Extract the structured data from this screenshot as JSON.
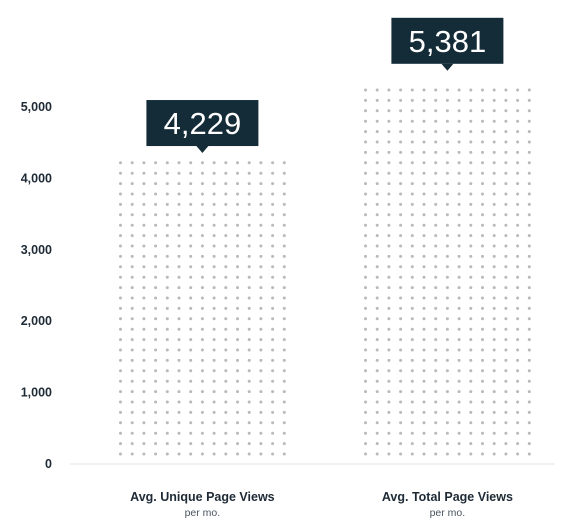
{
  "chart_data": {
    "type": "bar",
    "style": "dot-pattern",
    "categories": [
      "Avg. Unique Page Views",
      "Avg. Total Page Views"
    ],
    "category_sublabels": [
      "per mo.",
      "per mo."
    ],
    "values": [
      4229,
      5381
    ],
    "data_labels": [
      "4,229",
      "5,381"
    ],
    "ylim": [
      0,
      5500
    ],
    "y_ticks": [
      0,
      1000,
      2000,
      3000,
      4000,
      5000
    ],
    "y_tick_labels": [
      "0",
      "1,000",
      "2,000",
      "3,000",
      "4,000",
      "5,000"
    ],
    "grid": false,
    "colors": {
      "dots": "#b9b9b9",
      "callout": "#142b38",
      "axis": "#e3e3e3"
    }
  }
}
